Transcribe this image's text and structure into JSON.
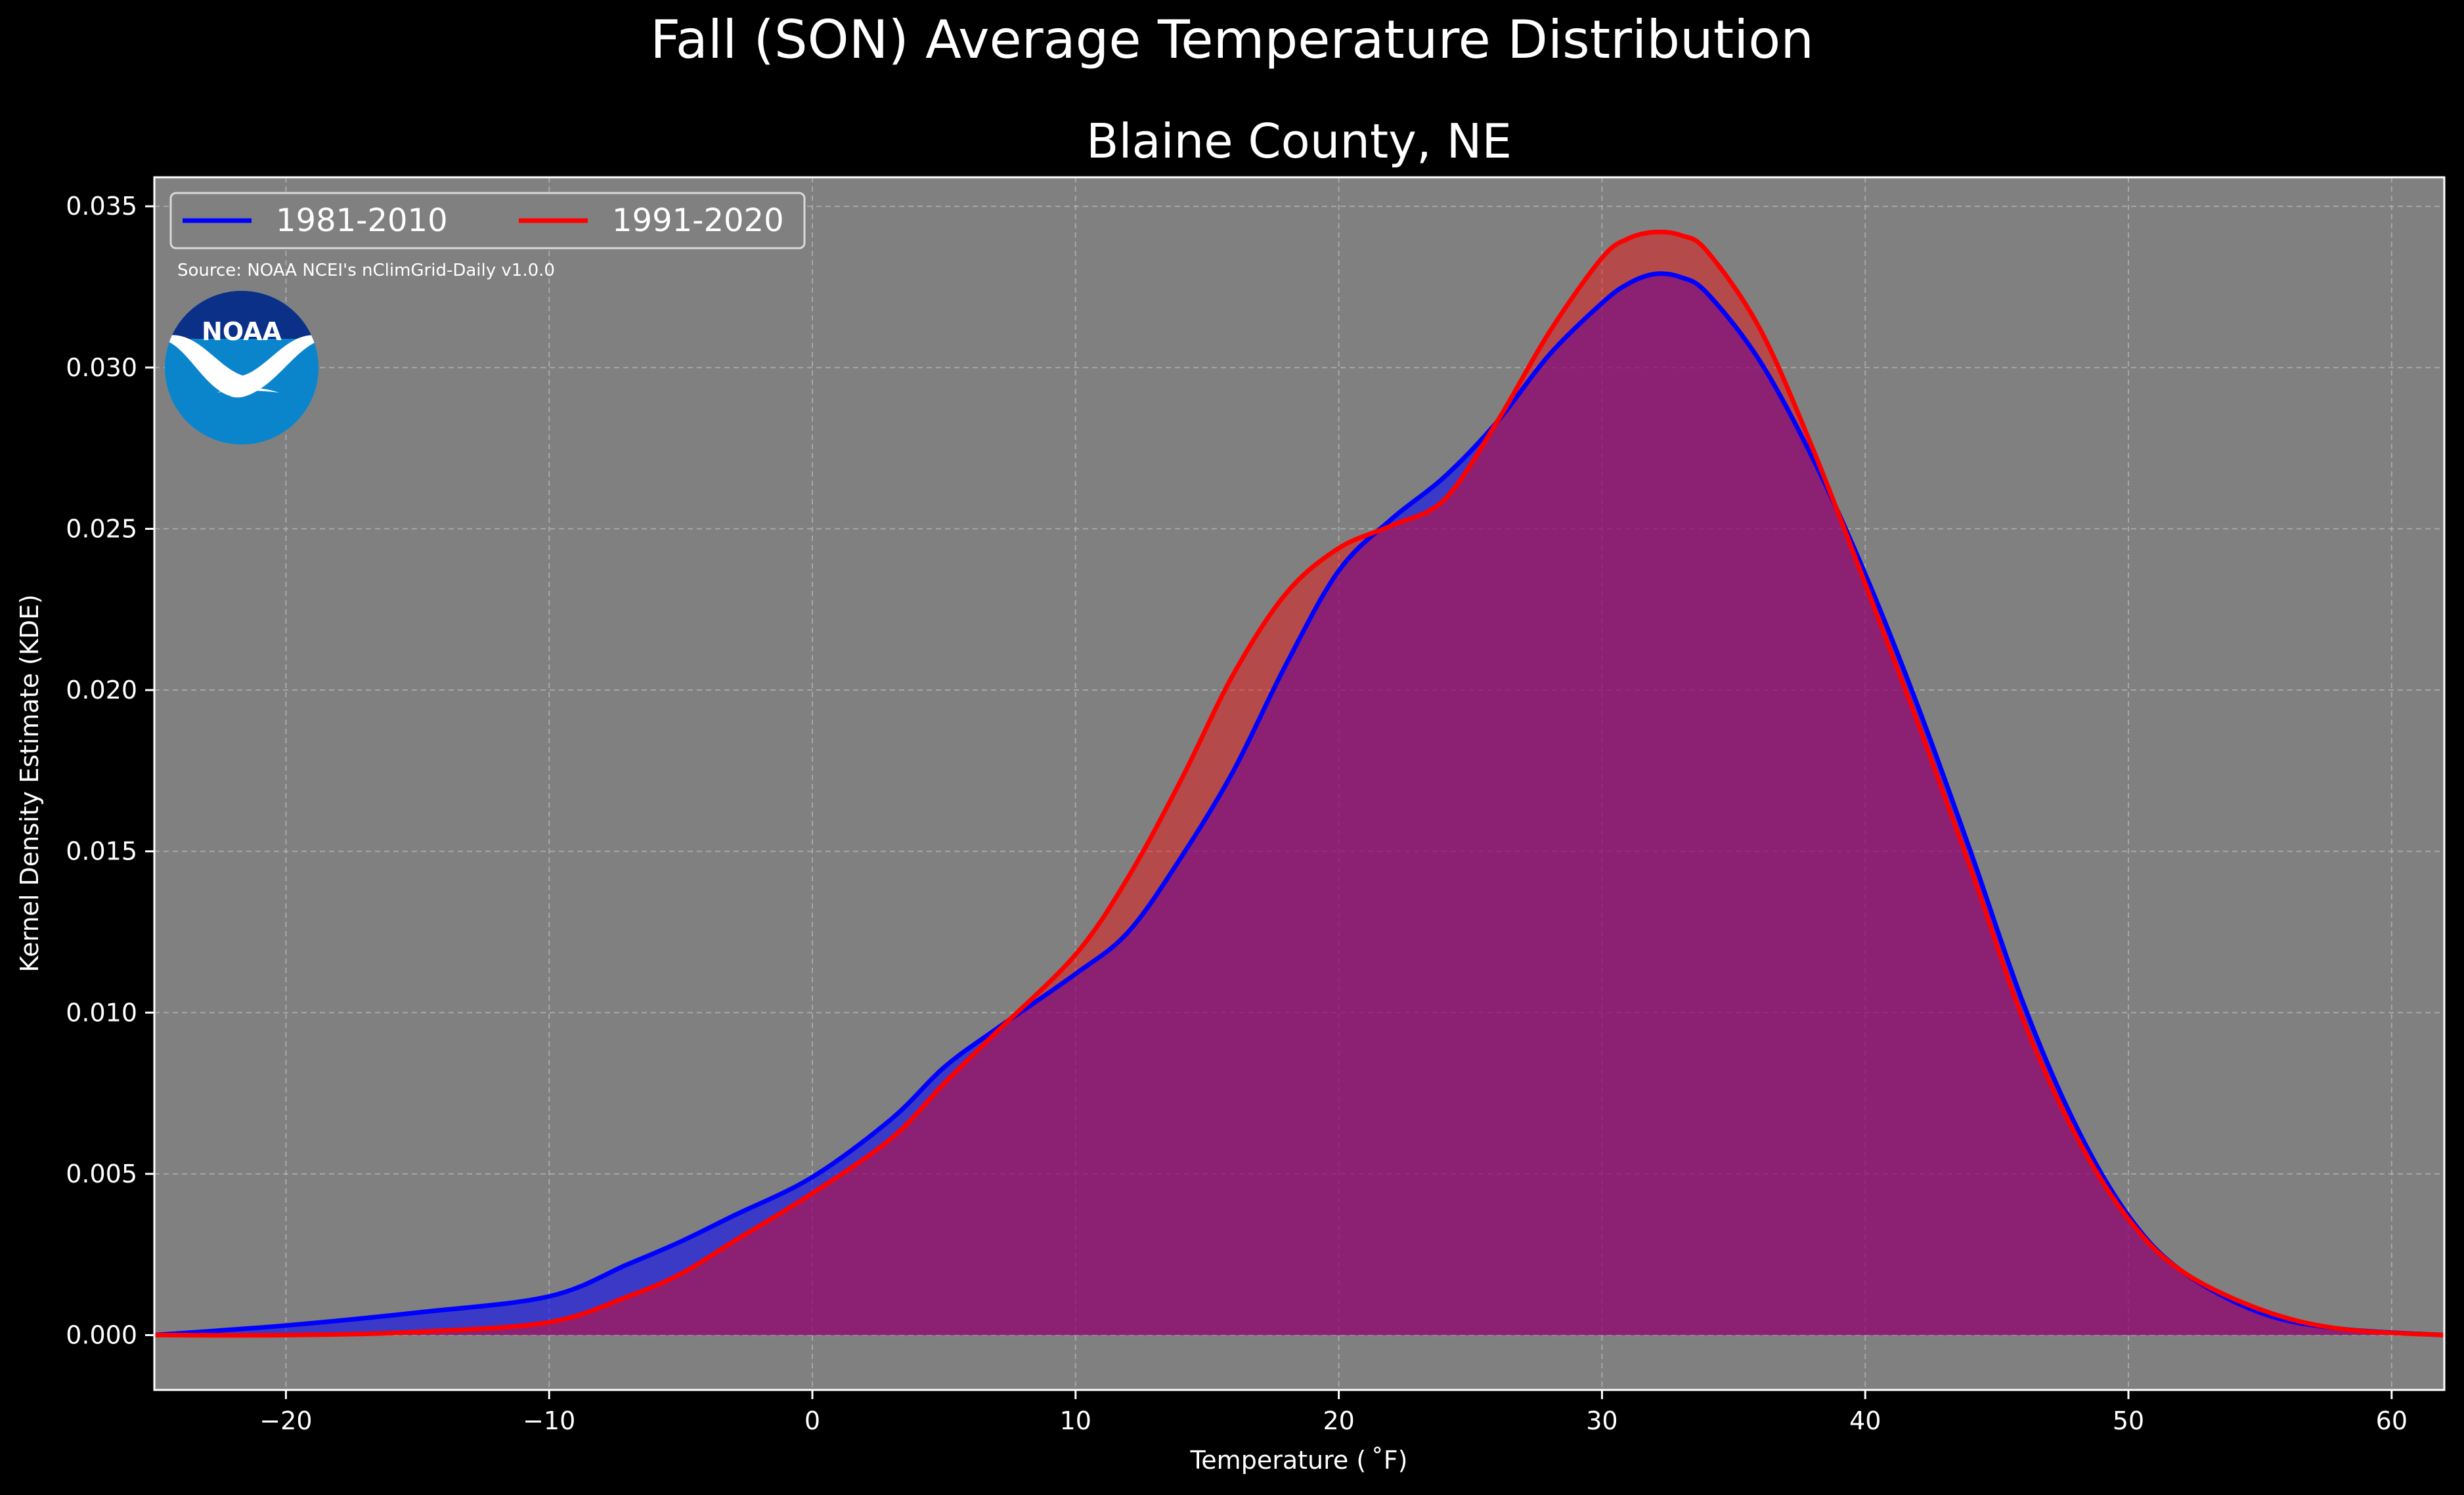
{
  "chart_data": {
    "type": "area",
    "title": "Fall (SON) Average Temperature Distribution",
    "subtitle": "Blaine County, NE",
    "xlabel": "Temperature ( ˚F)",
    "ylabel": "Kernel Density Estimate (KDE)",
    "source": "Source: NOAA NCEI's nClimGrid-Daily v1.0.0",
    "logo_text": "NOAA",
    "xlim": [
      -25,
      62
    ],
    "ylim": [
      -0.0017,
      0.0359
    ],
    "x_ticks": [
      -20,
      -10,
      0,
      10,
      20,
      30,
      40,
      50,
      60
    ],
    "x_tick_labels": [
      "−20",
      "−10",
      "0",
      "10",
      "20",
      "30",
      "40",
      "50",
      "60"
    ],
    "y_ticks": [
      0.0,
      0.005,
      0.01,
      0.015,
      0.02,
      0.025,
      0.03,
      0.035
    ],
    "y_tick_labels": [
      "0.000",
      "0.005",
      "0.010",
      "0.015",
      "0.020",
      "0.025",
      "0.030",
      "0.035"
    ],
    "grid": true,
    "legend_position": "top-left",
    "colors": {
      "background": "#000000",
      "plot_background": "#808080",
      "grid": "#b8b8b8",
      "text": "#ffffff",
      "series_1981": "#0000ff",
      "series_1991": "#ff0000",
      "noaa_dark": "#0b3087",
      "noaa_light": "#0a85cc"
    },
    "series": [
      {
        "name": "1981-2010",
        "color": "#0000ff",
        "x": [
          -25,
          -20,
          -15,
          -10,
          -7,
          -5,
          -3,
          0,
          3,
          5,
          7,
          10,
          12,
          14,
          16,
          18,
          20,
          22,
          24,
          26,
          28,
          30,
          31,
          32,
          33,
          34,
          36,
          38,
          40,
          42,
          44,
          46,
          48,
          50,
          52,
          55,
          58,
          62
        ],
        "y": [
          0.0,
          0.0003,
          0.0007,
          0.0012,
          0.0022,
          0.0029,
          0.0037,
          0.0049,
          0.0067,
          0.0083,
          0.0095,
          0.0112,
          0.0125,
          0.0148,
          0.0175,
          0.0208,
          0.0237,
          0.0253,
          0.0266,
          0.0283,
          0.0304,
          0.032,
          0.0326,
          0.0329,
          0.0328,
          0.0323,
          0.0302,
          0.0272,
          0.0236,
          0.0195,
          0.015,
          0.0103,
          0.0065,
          0.0037,
          0.002,
          0.0007,
          0.0002,
          0.0
        ]
      },
      {
        "name": "1991-2020",
        "color": "#ff0000",
        "x": [
          -25,
          -20,
          -15,
          -10,
          -7,
          -5,
          -3,
          0,
          3,
          5,
          7,
          10,
          12,
          14,
          16,
          18,
          20,
          22,
          24,
          26,
          28,
          30,
          31,
          32,
          33,
          34,
          36,
          38,
          40,
          42,
          44,
          46,
          48,
          50,
          52,
          55,
          58,
          62
        ],
        "y": [
          0.0,
          0.0,
          0.0001,
          0.0004,
          0.0012,
          0.0019,
          0.0029,
          0.0044,
          0.0061,
          0.0078,
          0.0094,
          0.0118,
          0.0142,
          0.0172,
          0.0205,
          0.023,
          0.0244,
          0.0251,
          0.0259,
          0.0283,
          0.0311,
          0.0334,
          0.034,
          0.0342,
          0.0341,
          0.0336,
          0.0312,
          0.0275,
          0.0233,
          0.019,
          0.0145,
          0.0098,
          0.0062,
          0.0036,
          0.002,
          0.0008,
          0.0002,
          0.0
        ]
      }
    ]
  }
}
